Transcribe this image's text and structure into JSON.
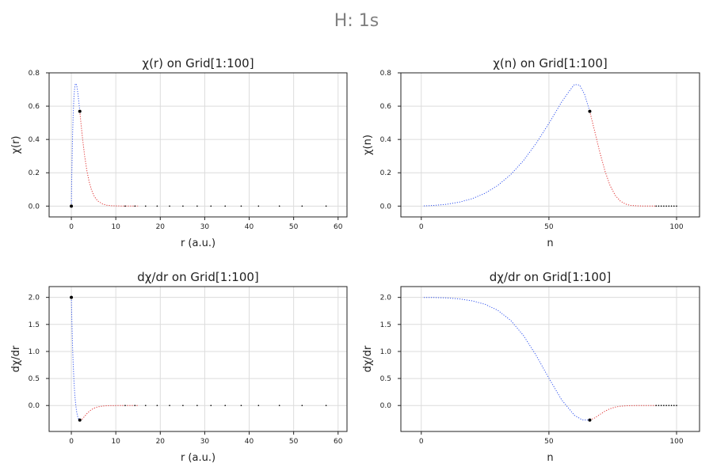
{
  "figure": {
    "title": "H: 1s"
  },
  "colors": {
    "blue": "#3355ee",
    "red": "#e03030",
    "marker": "#000000"
  },
  "chart_data": [
    {
      "type": "line",
      "id": "chi-r",
      "title": "χ(r) on Grid[1:100]",
      "xlabel": "r (a.u.)",
      "ylabel": "χ(r)",
      "xlim": [
        -5,
        62
      ],
      "ylim": [
        -0.065,
        0.8
      ],
      "xticks": [
        0,
        10,
        20,
        30,
        40,
        50,
        60
      ],
      "yticks": [
        0.0,
        0.2,
        0.4,
        0.6,
        0.8
      ],
      "ytick_labels": [
        "0.0",
        "0.2",
        "0.4",
        "0.6",
        "0.8"
      ],
      "grid": true,
      "legend": false,
      "series": [
        {
          "color": "blue",
          "x": [
            0.0,
            0.1,
            0.2,
            0.3,
            0.4,
            0.5,
            0.6,
            0.7,
            0.8,
            0.9,
            1.0,
            1.1,
            1.2,
            1.3,
            1.4,
            1.5,
            1.6,
            1.7,
            1.8,
            1.9
          ],
          "y": [
            0.0,
            0.181,
            0.327,
            0.444,
            0.536,
            0.607,
            0.659,
            0.696,
            0.719,
            0.732,
            0.736,
            0.732,
            0.723,
            0.709,
            0.69,
            0.669,
            0.646,
            0.621,
            0.595,
            0.569
          ]
        },
        {
          "color": "red",
          "x": [
            1.9,
            2.2,
            2.5,
            3.0,
            3.5,
            4.0,
            4.5,
            5.0,
            5.5,
            6.0,
            7.0,
            8.0,
            9.0,
            10.0,
            12.0,
            15.0
          ],
          "y": [
            0.569,
            0.488,
            0.41,
            0.299,
            0.212,
            0.147,
            0.1,
            0.067,
            0.045,
            0.03,
            0.013,
            0.005,
            0.002,
            0.001,
            0.0,
            0.0
          ]
        },
        {
          "color": "marker",
          "style": "points",
          "x": [
            12.1,
            14.3,
            16.7,
            19.3,
            22.1,
            25.1,
            28.3,
            31.4,
            34.6,
            38.2,
            42.1,
            46.8,
            51.9,
            57.3
          ],
          "y": [
            0,
            0,
            0,
            0,
            0,
            0,
            0,
            0,
            0,
            0,
            0,
            0,
            0,
            0
          ]
        }
      ],
      "markers": [
        {
          "x": 0.0,
          "y": 0.0
        },
        {
          "x": 1.9,
          "y": 0.569
        }
      ]
    },
    {
      "type": "line",
      "id": "chi-n",
      "title": "χ(n) on Grid[1:100]",
      "xlabel": "n",
      "ylabel": "χ(n)",
      "xlim": [
        -8,
        109
      ],
      "ylim": [
        -0.065,
        0.8
      ],
      "xticks": [
        0,
        50,
        100
      ],
      "yticks": [
        0.0,
        0.2,
        0.4,
        0.6,
        0.8
      ],
      "ytick_labels": [
        "0.0",
        "0.2",
        "0.4",
        "0.6",
        "0.8"
      ],
      "grid": true,
      "legend": false,
      "series": [
        {
          "color": "blue",
          "x": [
            1,
            5,
            10,
            15,
            20,
            25,
            30,
            35,
            40,
            45,
            50,
            55,
            58,
            60,
            62,
            64,
            66
          ],
          "y": [
            0.001,
            0.004,
            0.011,
            0.024,
            0.045,
            0.077,
            0.124,
            0.189,
            0.273,
            0.377,
            0.497,
            0.625,
            0.691,
            0.73,
            0.727,
            0.67,
            0.569
          ]
        },
        {
          "color": "red",
          "x": [
            66,
            68,
            70,
            72,
            74,
            76,
            78,
            80,
            82,
            85,
            88,
            92
          ],
          "y": [
            0.569,
            0.445,
            0.32,
            0.208,
            0.122,
            0.064,
            0.03,
            0.012,
            0.004,
            0.001,
            0.0,
            0.0
          ]
        },
        {
          "color": "marker",
          "style": "points",
          "x": [
            92,
            93,
            94,
            95,
            96,
            97,
            98,
            99,
            100
          ],
          "y": [
            0,
            0,
            0,
            0,
            0,
            0,
            0,
            0,
            0
          ]
        }
      ],
      "markers": [
        {
          "x": 66,
          "y": 0.569
        }
      ]
    },
    {
      "type": "line",
      "id": "dchi-r",
      "title": "dχ/dr on Grid[1:100]",
      "xlabel": "r (a.u.)",
      "ylabel": "dχ/dr",
      "xlim": [
        -5,
        62
      ],
      "ylim": [
        -0.48,
        2.2
      ],
      "xticks": [
        0,
        10,
        20,
        30,
        40,
        50,
        60
      ],
      "yticks": [
        0.0,
        0.5,
        1.0,
        1.5,
        2.0
      ],
      "ytick_labels": [
        "0.0",
        "0.5",
        "1.0",
        "1.5",
        "2.0"
      ],
      "grid": true,
      "legend": false,
      "series": [
        {
          "color": "blue",
          "x": [
            0.0,
            0.1,
            0.2,
            0.3,
            0.4,
            0.5,
            0.6,
            0.8,
            1.0,
            1.2,
            1.4,
            1.6,
            1.8,
            1.9
          ],
          "y": [
            2.0,
            1.629,
            1.31,
            1.037,
            0.804,
            0.607,
            0.439,
            0.18,
            0.0,
            -0.12,
            -0.197,
            -0.242,
            -0.264,
            -0.269
          ]
        },
        {
          "color": "red",
          "x": [
            1.9,
            2.2,
            2.5,
            3.0,
            3.5,
            4.0,
            4.5,
            5.0,
            5.5,
            6.0,
            7.0,
            8.0,
            9.0,
            10.0,
            12.0,
            15.0
          ],
          "y": [
            -0.269,
            -0.266,
            -0.247,
            -0.199,
            -0.151,
            -0.11,
            -0.078,
            -0.054,
            -0.036,
            -0.025,
            -0.011,
            -0.004,
            -0.002,
            -0.001,
            0.0,
            0.0
          ]
        },
        {
          "color": "marker",
          "style": "points",
          "x": [
            12.1,
            14.3,
            16.7,
            19.3,
            22.1,
            25.1,
            28.3,
            31.4,
            34.6,
            38.2,
            42.1,
            46.8,
            51.9,
            57.3
          ],
          "y": [
            0,
            0,
            0,
            0,
            0,
            0,
            0,
            0,
            0,
            0,
            0,
            0,
            0,
            0
          ]
        }
      ],
      "markers": [
        {
          "x": 0.0,
          "y": 2.0
        },
        {
          "x": 1.9,
          "y": -0.269
        }
      ]
    },
    {
      "type": "line",
      "id": "dchi-n",
      "title": "dχ/dr on Grid[1:100]",
      "xlabel": "n",
      "ylabel": "dχ/dr",
      "xlim": [
        -8,
        109
      ],
      "ylim": [
        -0.48,
        2.2
      ],
      "xticks": [
        0,
        50,
        100
      ],
      "yticks": [
        0.0,
        0.5,
        1.0,
        1.5,
        2.0
      ],
      "ytick_labels": [
        "0.0",
        "0.5",
        "1.0",
        "1.5",
        "2.0"
      ],
      "grid": true,
      "legend": false,
      "series": [
        {
          "color": "blue",
          "x": [
            1,
            5,
            10,
            15,
            20,
            25,
            30,
            35,
            40,
            45,
            50,
            55,
            60,
            63,
            66
          ],
          "y": [
            2.0,
            1.998,
            1.99,
            1.972,
            1.937,
            1.872,
            1.76,
            1.574,
            1.296,
            0.927,
            0.504,
            0.105,
            -0.181,
            -0.265,
            -0.269
          ]
        },
        {
          "color": "red",
          "x": [
            66,
            68,
            70,
            72,
            74,
            76,
            78,
            80,
            82,
            85,
            88,
            92
          ],
          "y": [
            -0.269,
            -0.228,
            -0.165,
            -0.104,
            -0.058,
            -0.029,
            -0.013,
            -0.005,
            -0.002,
            0.0,
            0.0,
            0.0
          ]
        },
        {
          "color": "marker",
          "style": "points",
          "x": [
            92,
            93,
            94,
            95,
            96,
            97,
            98,
            99,
            100
          ],
          "y": [
            0,
            0,
            0,
            0,
            0,
            0,
            0,
            0,
            0
          ]
        }
      ],
      "markers": [
        {
          "x": 66,
          "y": -0.269
        }
      ]
    }
  ]
}
